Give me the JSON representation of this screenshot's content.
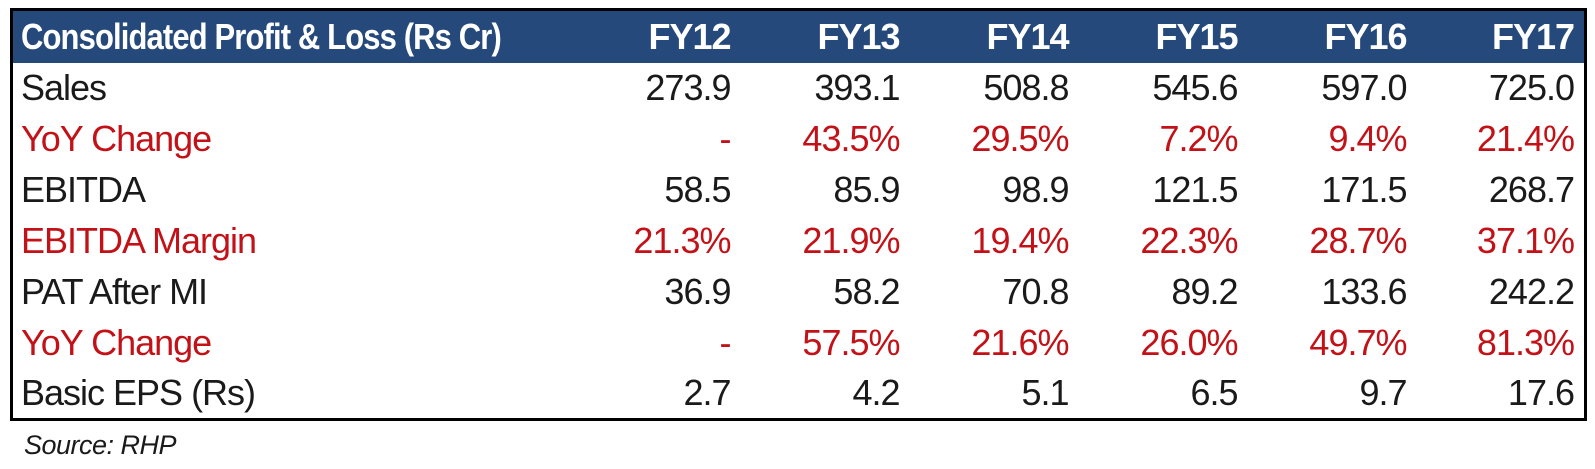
{
  "colors": {
    "header_bg": "#26497B",
    "header_text": "#FFFFFF",
    "red": "#C21218",
    "black": "#1A1A1A",
    "border": "#000000"
  },
  "source_note": "Source: RHP",
  "table": {
    "title": "Consolidated Profit & Loss (Rs Cr)",
    "columns": [
      "FY12",
      "FY13",
      "FY14",
      "FY15",
      "FY16",
      "FY17"
    ],
    "rows": [
      {
        "label": "Sales",
        "emphasis": "black",
        "values": [
          "273.9",
          "393.1",
          "508.8",
          "545.6",
          "597.0",
          "725.0"
        ]
      },
      {
        "label": "YoY Change",
        "emphasis": "red",
        "values": [
          "-",
          "43.5%",
          "29.5%",
          "7.2%",
          "9.4%",
          "21.4%"
        ]
      },
      {
        "label": "EBITDA",
        "emphasis": "black",
        "values": [
          "58.5",
          "85.9",
          "98.9",
          "121.5",
          "171.5",
          "268.7"
        ]
      },
      {
        "label": "EBITDA Margin",
        "emphasis": "red",
        "values": [
          "21.3%",
          "21.9%",
          "19.4%",
          "22.3%",
          "28.7%",
          "37.1%"
        ]
      },
      {
        "label": "PAT After MI",
        "emphasis": "black",
        "values": [
          "36.9",
          "58.2",
          "70.8",
          "89.2",
          "133.6",
          "242.2"
        ]
      },
      {
        "label": "YoY Change",
        "emphasis": "red",
        "values": [
          "-",
          "57.5%",
          "21.6%",
          "26.0%",
          "49.7%",
          "81.3%"
        ]
      },
      {
        "label": "Basic EPS (Rs)",
        "emphasis": "black",
        "values": [
          "2.7",
          "4.2",
          "5.1",
          "6.5",
          "9.7",
          "17.6"
        ]
      }
    ]
  },
  "chart_data": {
    "type": "table",
    "title": "Consolidated Profit & Loss (Rs Cr)",
    "categories": [
      "FY12",
      "FY13",
      "FY14",
      "FY15",
      "FY16",
      "FY17"
    ],
    "series": [
      {
        "name": "Sales",
        "values": [
          273.9,
          393.1,
          508.8,
          545.6,
          597.0,
          725.0
        ]
      },
      {
        "name": "YoY Change",
        "values": [
          null,
          "43.5%",
          "29.5%",
          "7.2%",
          "9.4%",
          "21.4%"
        ]
      },
      {
        "name": "EBITDA",
        "values": [
          58.5,
          85.9,
          98.9,
          121.5,
          171.5,
          268.7
        ]
      },
      {
        "name": "EBITDA Margin",
        "values": [
          "21.3%",
          "21.9%",
          "19.4%",
          "22.3%",
          "28.7%",
          "37.1%"
        ]
      },
      {
        "name": "PAT After MI",
        "values": [
          36.9,
          58.2,
          70.8,
          89.2,
          133.6,
          242.2
        ]
      },
      {
        "name": "YoY Change",
        "values": [
          null,
          "57.5%",
          "21.6%",
          "26.0%",
          "49.7%",
          "81.3%"
        ]
      },
      {
        "name": "Basic EPS (Rs)",
        "values": [
          2.7,
          4.2,
          5.1,
          6.5,
          9.7,
          17.6
        ]
      }
    ]
  }
}
